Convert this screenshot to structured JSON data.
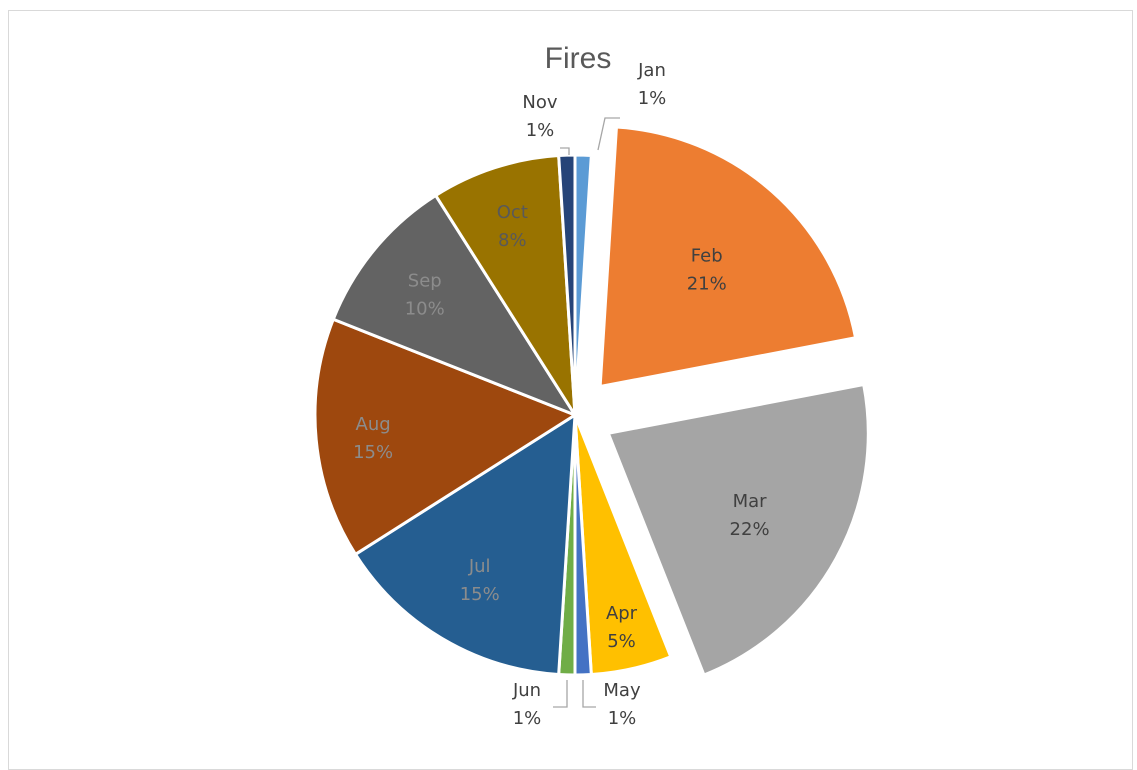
{
  "chart_data": {
    "type": "pie",
    "title": "Fires",
    "slices": [
      {
        "category": "Jan",
        "value": 1,
        "percent_label": "1%",
        "color": "#5b9bd5",
        "exploded": false,
        "label_color": "#404040"
      },
      {
        "category": "Feb",
        "value": 21,
        "percent_label": "21%",
        "color": "#ed7d31",
        "exploded": true,
        "label_color": "#404040"
      },
      {
        "category": "Mar",
        "value": 22,
        "percent_label": "22%",
        "color": "#a5a5a5",
        "exploded": true,
        "label_color": "#404040"
      },
      {
        "category": "Apr",
        "value": 5,
        "percent_label": "5%",
        "color": "#ffc000",
        "exploded": false,
        "label_color": "#404040"
      },
      {
        "category": "May",
        "value": 1,
        "percent_label": "1%",
        "color": "#4472c4",
        "exploded": false,
        "label_color": "#404040"
      },
      {
        "category": "Jun",
        "value": 1,
        "percent_label": "1%",
        "color": "#70ad47",
        "exploded": false,
        "label_color": "#404040"
      },
      {
        "category": "Jul",
        "value": 15,
        "percent_label": "15%",
        "color": "#255e91",
        "exploded": false,
        "label_color": "#8c8c8c"
      },
      {
        "category": "Aug",
        "value": 15,
        "percent_label": "15%",
        "color": "#9e480e",
        "exploded": false,
        "label_color": "#8c8c8c"
      },
      {
        "category": "Sep",
        "value": 10,
        "percent_label": "10%",
        "color": "#636363",
        "exploded": false,
        "label_color": "#8c8c8c"
      },
      {
        "category": "Oct",
        "value": 8,
        "percent_label": "8%",
        "color": "#997300",
        "exploded": false,
        "label_color": "#595959"
      },
      {
        "category": "Nov",
        "value": 1,
        "percent_label": "1%",
        "color": "#264478",
        "exploded": false,
        "label_color": "#404040"
      }
    ],
    "legend": "none"
  }
}
